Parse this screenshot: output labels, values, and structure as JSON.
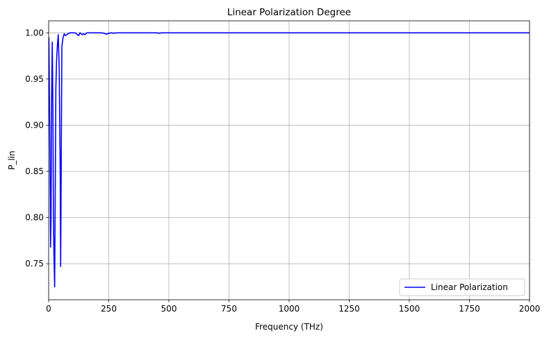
{
  "chart_data": {
    "type": "line",
    "title": "Linear Polarization Degree",
    "xlabel": "Frequency (THz)",
    "ylabel": "P_lin",
    "xlim": [
      0,
      2000
    ],
    "ylim": [
      0.711,
      1.013
    ],
    "xticks": [
      0,
      250,
      500,
      750,
      1000,
      1250,
      1500,
      1750,
      2000
    ],
    "yticks": [
      0.75,
      0.8,
      0.85,
      0.9,
      0.95,
      1.0
    ],
    "grid": true,
    "legend_position": "lower-right",
    "series": [
      {
        "name": "Linear Polarization",
        "color": "#0000ff",
        "x": [
          1,
          5,
          8,
          10,
          12,
          15,
          18,
          20,
          22,
          25,
          28,
          30,
          33,
          36,
          40,
          44,
          48,
          50,
          55,
          60,
          65,
          70,
          75,
          80,
          90,
          100,
          110,
          120,
          125,
          130,
          135,
          140,
          145,
          150,
          155,
          160,
          170,
          180,
          200,
          220,
          230,
          240,
          250,
          260,
          270,
          280,
          300,
          350,
          400,
          450,
          460,
          470,
          500,
          600,
          800,
          1000,
          1500,
          2000
        ],
        "y": [
          0.995,
          0.88,
          0.768,
          0.8,
          0.92,
          0.99,
          0.91,
          0.8,
          0.76,
          0.725,
          0.85,
          0.94,
          0.97,
          0.985,
          0.998,
          0.96,
          0.85,
          0.747,
          0.985,
          0.995,
          0.999,
          0.997,
          0.998,
          0.999,
          1.0,
          1.0,
          1.0,
          0.998,
          0.997,
          1.0,
          0.999,
          0.998,
          0.999,
          0.998,
          0.999,
          1.0,
          1.0,
          1.0,
          1.0,
          1.0,
          0.9995,
          0.9985,
          0.9995,
          1.0,
          0.9995,
          1.0,
          1.0,
          1.0,
          1.0,
          1.0,
          0.9995,
          1.0,
          1.0,
          1.0,
          1.0,
          1.0,
          1.0,
          1.0
        ]
      }
    ]
  }
}
